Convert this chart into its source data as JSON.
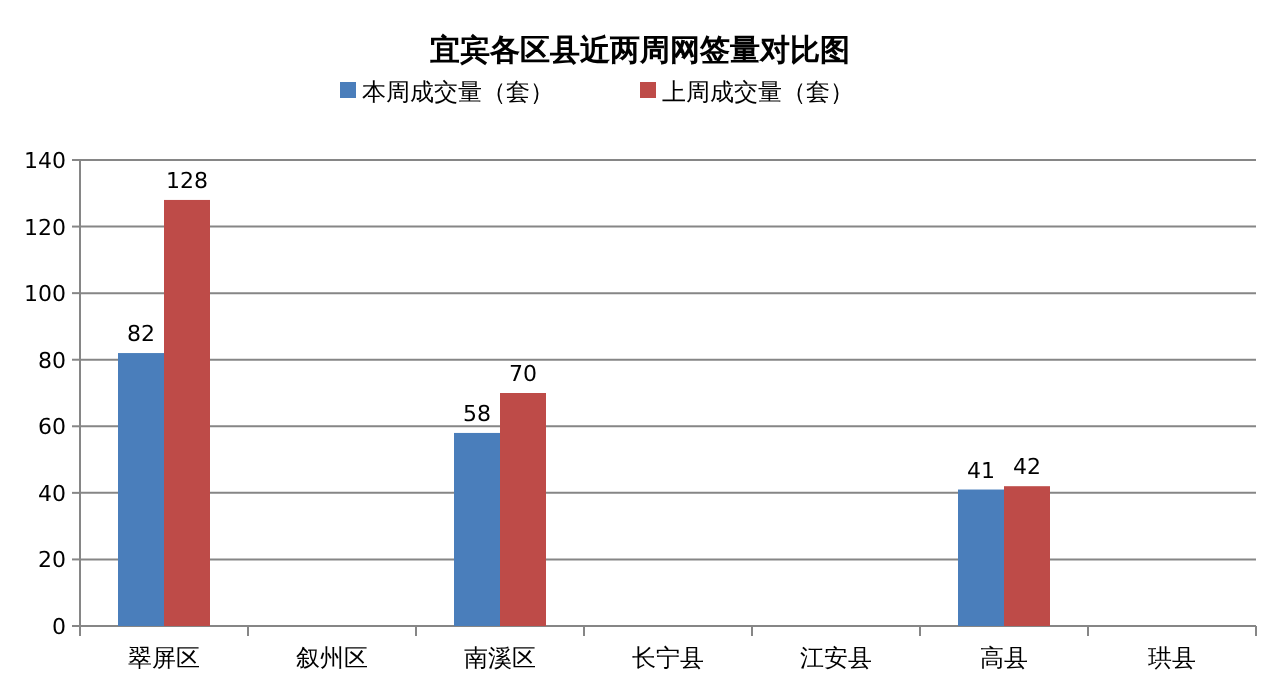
{
  "chart_data": {
    "type": "bar",
    "title": "宜宾各区县近两周网签量对比图",
    "categories": [
      "翠屏区",
      "叙州区",
      "南溪区",
      "长宁县",
      "江安县",
      "高县",
      "珙县"
    ],
    "series": [
      {
        "name": "本周成交量（套）",
        "color": "#4a7ebb",
        "values": [
          82,
          null,
          58,
          null,
          null,
          41,
          null
        ]
      },
      {
        "name": "上周成交量（套）",
        "color": "#be4b48",
        "values": [
          128,
          null,
          70,
          null,
          null,
          42,
          null
        ]
      }
    ],
    "ylim": [
      0,
      140
    ],
    "yticks": [
      0,
      20,
      40,
      60,
      80,
      100,
      120,
      140
    ],
    "grid": "y",
    "legend": "top",
    "data_labels": true
  }
}
